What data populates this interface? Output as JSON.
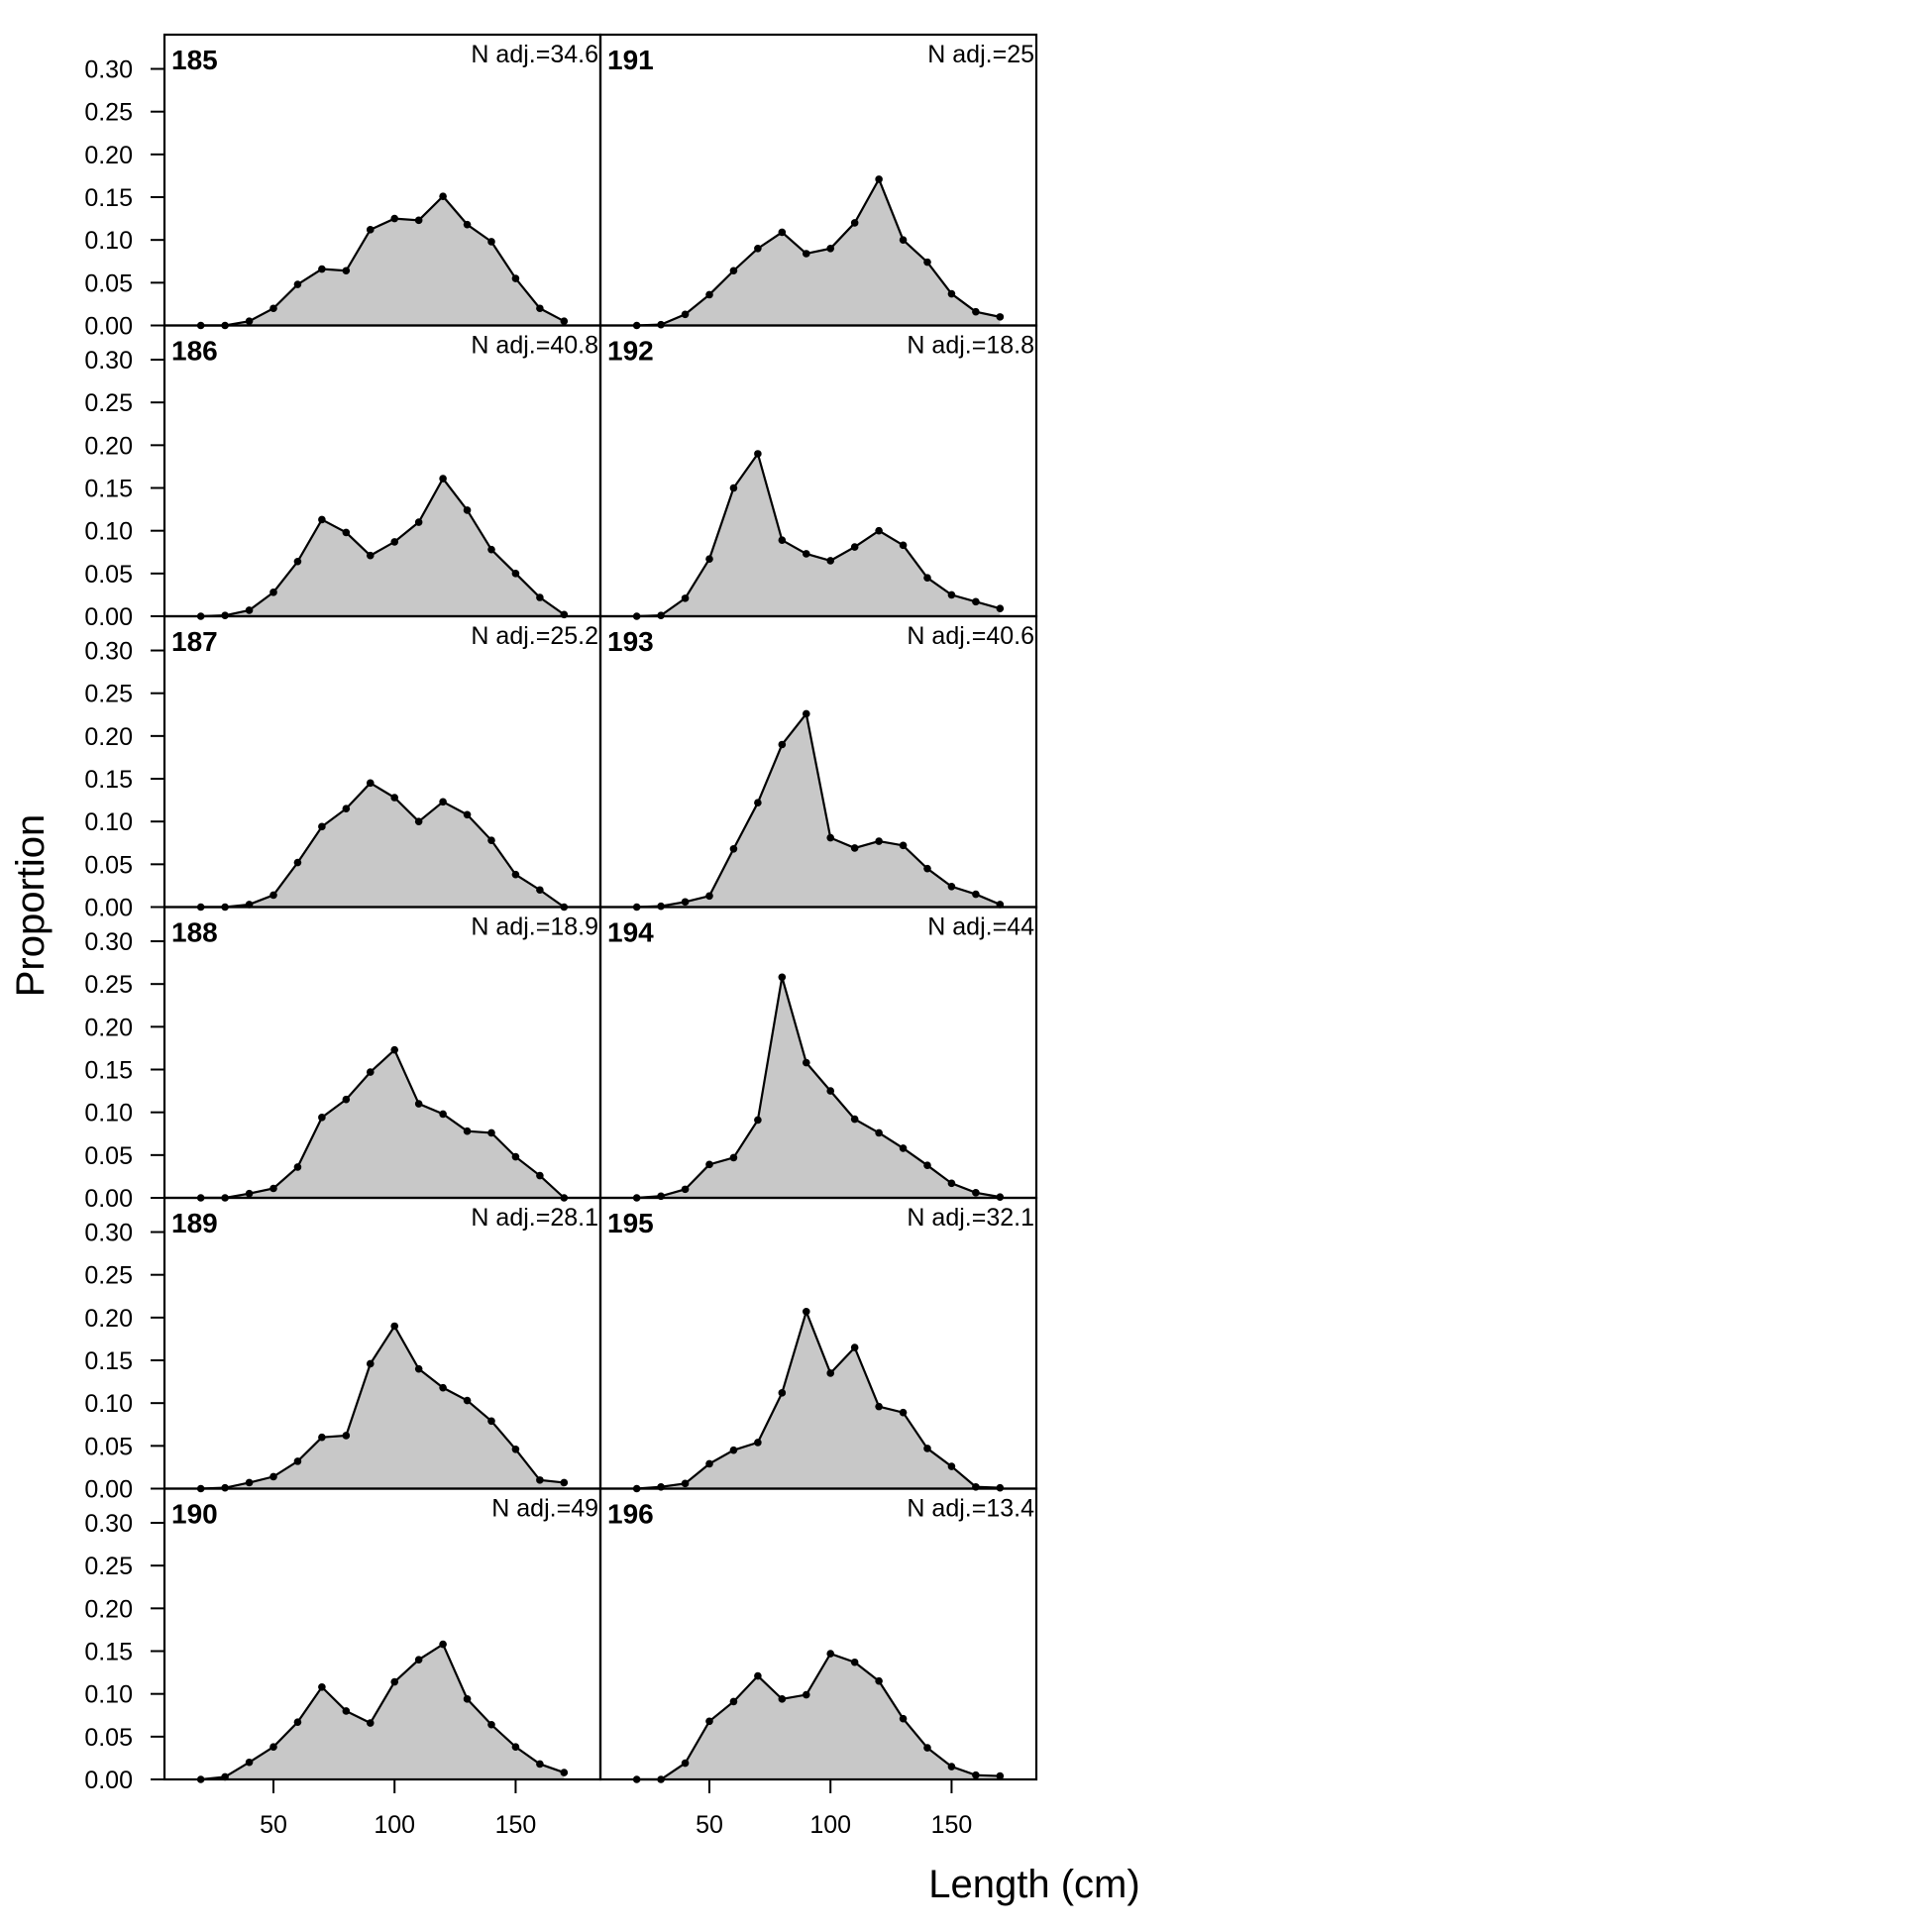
{
  "chart_data": {
    "type": "area",
    "xlabel": "Length (cm)",
    "ylabel": "Proportion",
    "x": [
      20,
      30,
      40,
      50,
      60,
      70,
      80,
      90,
      100,
      110,
      120,
      130,
      140,
      150,
      160,
      170
    ],
    "xlim": [
      5,
      185
    ],
    "ylim": [
      0,
      0.34
    ],
    "xticks": [
      50,
      100,
      150
    ],
    "xtick_labels": [
      "50",
      "100",
      "150"
    ],
    "yticks": [
      0,
      0.05,
      0.1,
      0.15,
      0.2,
      0.25,
      0.3
    ],
    "ytick_labels": [
      "0.00",
      "0.05",
      "0.10",
      "0.15",
      "0.20",
      "0.25",
      "0.30"
    ],
    "fill_color": "#c8c8c8",
    "line_color": "#000000",
    "layout": "6 rows x 2 columns, column-major",
    "panels": [
      {
        "title": "185",
        "n_label": "N adj.=34.6",
        "values": [
          0,
          0,
          0.005,
          0.02,
          0.048,
          0.066,
          0.064,
          0.112,
          0.125,
          0.123,
          0.151,
          0.118,
          0.098,
          0.055,
          0.02,
          0.005
        ]
      },
      {
        "title": "186",
        "n_label": "N adj.=40.8",
        "values": [
          0,
          0.001,
          0.007,
          0.028,
          0.064,
          0.113,
          0.098,
          0.071,
          0.087,
          0.11,
          0.161,
          0.124,
          0.078,
          0.05,
          0.022,
          0.002
        ]
      },
      {
        "title": "187",
        "n_label": "N adj.=25.2",
        "values": [
          0,
          0,
          0.003,
          0.014,
          0.052,
          0.094,
          0.115,
          0.145,
          0.128,
          0.1,
          0.123,
          0.108,
          0.078,
          0.038,
          0.02,
          0
        ]
      },
      {
        "title": "188",
        "n_label": "N adj.=18.9",
        "values": [
          0,
          0,
          0.005,
          0.011,
          0.036,
          0.094,
          0.115,
          0.147,
          0.173,
          0.11,
          0.098,
          0.078,
          0.076,
          0.048,
          0.026,
          0
        ]
      },
      {
        "title": "189",
        "n_label": "N adj.=28.1",
        "values": [
          0,
          0.001,
          0.007,
          0.014,
          0.032,
          0.06,
          0.062,
          0.146,
          0.19,
          0.14,
          0.118,
          0.103,
          0.079,
          0.046,
          0.01,
          0.007
        ]
      },
      {
        "title": "190",
        "n_label": "N adj.=49",
        "values": [
          0,
          0.003,
          0.02,
          0.038,
          0.067,
          0.108,
          0.08,
          0.066,
          0.114,
          0.14,
          0.158,
          0.094,
          0.064,
          0.038,
          0.018,
          0.008
        ]
      },
      {
        "title": "191",
        "n_label": "N adj.=25",
        "values": [
          0,
          0.001,
          0.013,
          0.036,
          0.064,
          0.09,
          0.109,
          0.084,
          0.09,
          0.12,
          0.171,
          0.1,
          0.074,
          0.037,
          0.016,
          0.01
        ]
      },
      {
        "title": "192",
        "n_label": "N adj.=18.8",
        "values": [
          0,
          0.001,
          0.021,
          0.067,
          0.15,
          0.19,
          0.089,
          0.073,
          0.065,
          0.081,
          0.1,
          0.083,
          0.045,
          0.025,
          0.017,
          0.009
        ]
      },
      {
        "title": "193",
        "n_label": "N adj.=40.6",
        "values": [
          0,
          0.001,
          0.006,
          0.013,
          0.068,
          0.122,
          0.19,
          0.226,
          0.081,
          0.069,
          0.077,
          0.072,
          0.045,
          0.024,
          0.015,
          0.003
        ]
      },
      {
        "title": "194",
        "n_label": "N adj.=44",
        "values": [
          0,
          0.002,
          0.01,
          0.039,
          0.047,
          0.091,
          0.258,
          0.158,
          0.125,
          0.092,
          0.076,
          0.058,
          0.038,
          0.017,
          0.006,
          0.001
        ]
      },
      {
        "title": "195",
        "n_label": "N adj.=32.1",
        "values": [
          0,
          0.002,
          0.006,
          0.029,
          0.045,
          0.054,
          0.112,
          0.207,
          0.135,
          0.165,
          0.096,
          0.089,
          0.047,
          0.026,
          0.002,
          0.001
        ]
      },
      {
        "title": "196",
        "n_label": "N adj.=13.4",
        "values": [
          0,
          0,
          0.019,
          0.068,
          0.091,
          0.121,
          0.094,
          0.099,
          0.147,
          0.137,
          0.115,
          0.071,
          0.037,
          0.015,
          0.005,
          0.004
        ]
      }
    ]
  }
}
